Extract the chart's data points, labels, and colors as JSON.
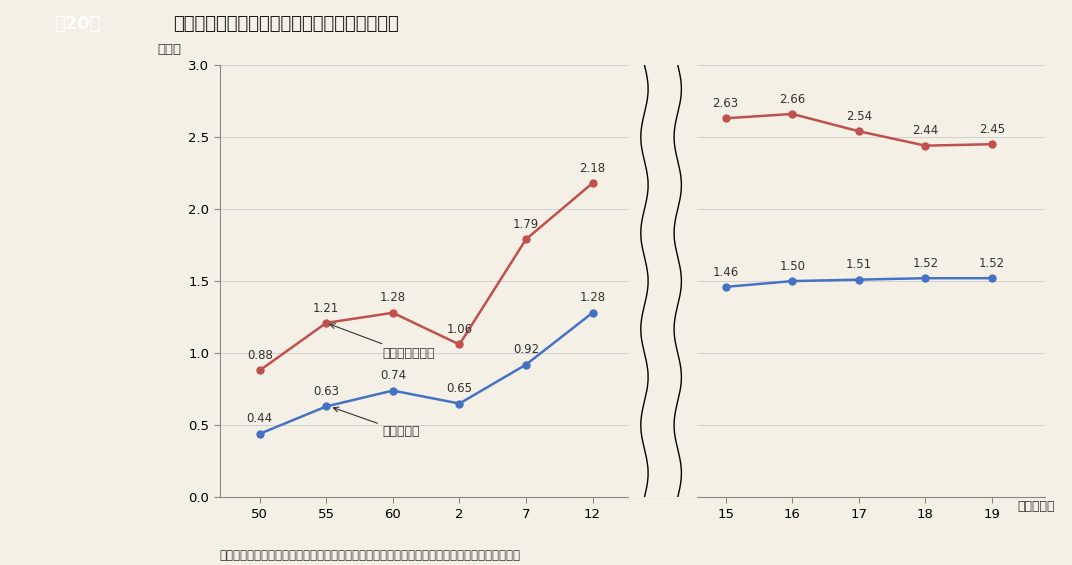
{
  "title_box_label": "第20図",
  "title_text": "地方債現在高の歳入総額等に対する割合の推移",
  "ylabel": "（倍）",
  "xlabel_suffix": "（年度末）",
  "note": "（注）　地方債現在高は、特定資金公共事業債及び特定資金公共投資事業債を除いた額である。",
  "background_color": "#f5f0e6",
  "header_bg_color": "#9e9088",
  "title_bg_color": "#ffffff",
  "x_labels": [
    "50",
    "55",
    "60",
    "2",
    "7",
    "12",
    "15",
    "16",
    "17",
    "18",
    "19（年度末）"
  ],
  "x_positions": [
    0,
    1,
    2,
    3,
    4,
    5,
    7,
    8,
    9,
    10,
    11
  ],
  "red_values": [
    0.88,
    1.21,
    1.28,
    1.06,
    1.79,
    2.18,
    2.63,
    2.66,
    2.54,
    2.44,
    2.45
  ],
  "blue_values": [
    0.44,
    0.63,
    0.74,
    0.65,
    0.92,
    1.28,
    1.46,
    1.5,
    1.51,
    1.52,
    1.52
  ],
  "red_labels": [
    "0.88",
    "1.21",
    "1.28",
    "1.06",
    "1.79",
    "2.18",
    "2.63",
    "2.66",
    "2.54",
    "2.44",
    "2.45"
  ],
  "blue_labels": [
    "0.44",
    "0.63",
    "0.74",
    "0.65",
    "0.92",
    "1.28",
    "1.46",
    "1.50",
    "1.51",
    "1.52",
    "1.52"
  ],
  "red_color": "#c0504d",
  "blue_color": "#4472c4",
  "red_label": "対一般財源総額",
  "blue_label": "対歳入総額",
  "ylim": [
    0,
    3.0
  ],
  "yticks": [
    0.0,
    0.5,
    1.0,
    1.5,
    2.0,
    2.5,
    3.0
  ],
  "grid_color": "#cccccc",
  "text_color": "#333333"
}
